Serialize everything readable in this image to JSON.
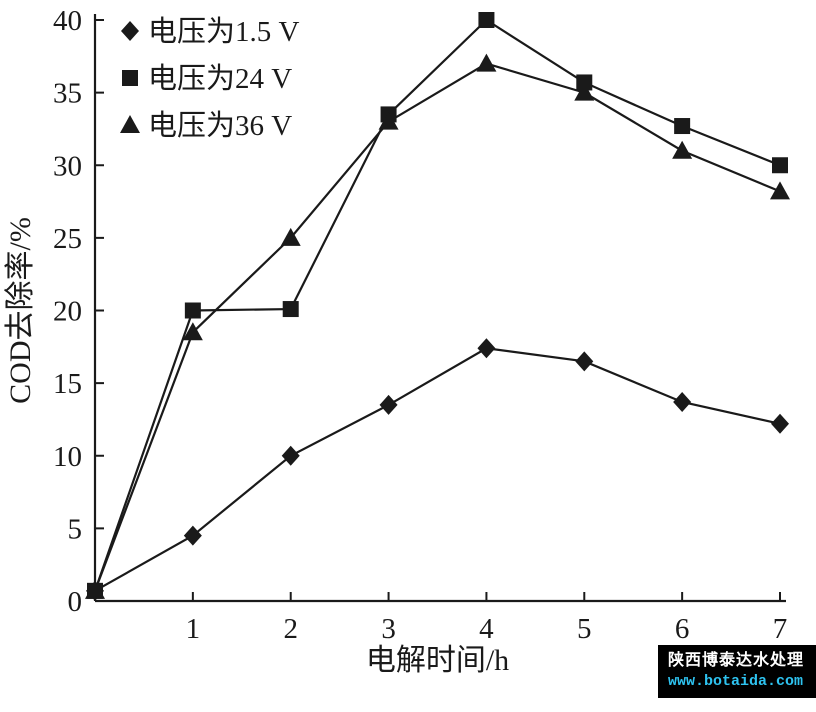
{
  "chart_data": {
    "type": "line",
    "title": "",
    "xlabel": "电解时间/h",
    "ylabel": "COD去除率/%",
    "xlim": [
      0,
      7
    ],
    "ylim": [
      0,
      40
    ],
    "x_ticks": [
      1,
      2,
      3,
      4,
      5,
      6,
      7
    ],
    "y_ticks": [
      0,
      5,
      10,
      15,
      20,
      25,
      30,
      35,
      40
    ],
    "grid": false,
    "legend_position": "top-left",
    "line_color": "#1a1a1a",
    "x": [
      0,
      1,
      2,
      3,
      4,
      5,
      6,
      7
    ],
    "series": [
      {
        "name": "电压为1.5 V",
        "marker": "diamond",
        "values": [
          0.7,
          4.5,
          10.0,
          13.5,
          17.4,
          16.5,
          13.7,
          12.2
        ]
      },
      {
        "name": "电压为24 V",
        "marker": "square",
        "values": [
          0.7,
          20.0,
          20.1,
          33.5,
          40.0,
          35.7,
          32.7,
          30.0
        ]
      },
      {
        "name": "电压为36 V",
        "marker": "triangle",
        "values": [
          0.7,
          18.5,
          25.0,
          33.0,
          37.0,
          35.0,
          31.0,
          28.2
        ]
      }
    ]
  },
  "watermark": {
    "line1": "陕西博泰达水处理",
    "line2": "www.botaida.com",
    "bg_color": "#000000",
    "line1_color": "#ffffff",
    "line2_color": "#2ec3f0"
  }
}
